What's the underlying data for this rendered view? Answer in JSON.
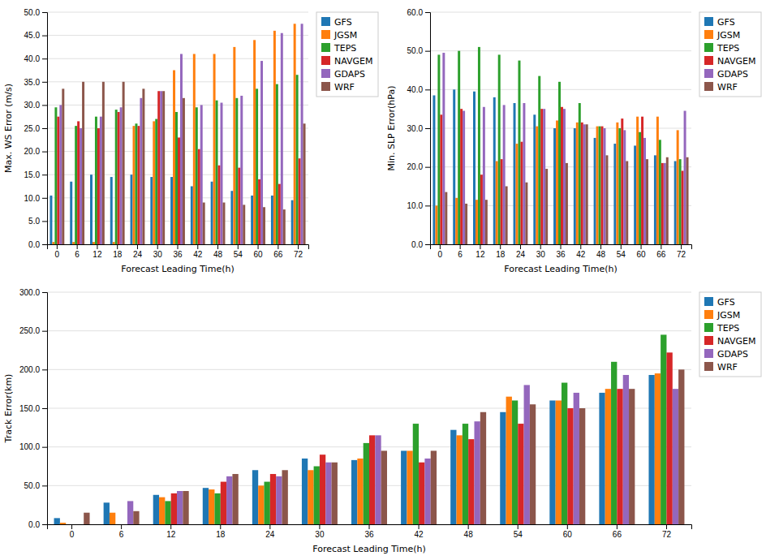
{
  "chart_data": [
    {
      "type": "bar",
      "categories": [
        "0",
        "6",
        "12",
        "18",
        "24",
        "30",
        "36",
        "42",
        "48",
        "54",
        "60",
        "66",
        "72"
      ],
      "series": [
        {
          "name": "GFS",
          "values": [
            10.5,
            13.5,
            15.0,
            14.5,
            15.0,
            14.5,
            14.5,
            12.5,
            13.5,
            11.5,
            10.5,
            10.5,
            9.5
          ]
        },
        {
          "name": "JGSM",
          "values": [
            0.5,
            0.5,
            0.5,
            0.5,
            25.5,
            26.5,
            37.5,
            41.0,
            41.0,
            42.5,
            44.0,
            46.0,
            47.5
          ]
        },
        {
          "name": "TEPS",
          "values": [
            29.5,
            25.5,
            27.5,
            29.0,
            26.0,
            27.0,
            28.5,
            29.5,
            31.0,
            31.5,
            33.5,
            34.5,
            36.5
          ]
        },
        {
          "name": "NAVGEM",
          "values": [
            27.5,
            26.5,
            25.0,
            28.5,
            25.5,
            33.0,
            23.0,
            20.5,
            17.0,
            16.5,
            14.0,
            13.0,
            18.5
          ]
        },
        {
          "name": "GDAPS",
          "values": [
            30.0,
            25.0,
            27.5,
            29.5,
            31.5,
            33.0,
            41.0,
            30.0,
            30.5,
            32.0,
            39.5,
            45.5,
            47.5
          ]
        },
        {
          "name": "WRF",
          "values": [
            33.5,
            35.0,
            35.0,
            35.0,
            33.5,
            33.0,
            31.5,
            9.0,
            9.0,
            8.5,
            8.0,
            7.5,
            26.0
          ]
        }
      ],
      "ylim": [
        0,
        50.0
      ],
      "yticks": [
        {
          "value": 0,
          "label": "0.0"
        },
        {
          "value": 5,
          "label": "5.0"
        },
        {
          "value": 10,
          "label": "10.0"
        },
        {
          "value": 15,
          "label": "15.0"
        },
        {
          "value": 20,
          "label": "20.0"
        },
        {
          "value": 25,
          "label": "25.0"
        },
        {
          "value": 30,
          "label": "30.0"
        },
        {
          "value": 35,
          "label": "35.0"
        },
        {
          "value": 40,
          "label": "40.0"
        },
        {
          "value": 45,
          "label": "45.0"
        },
        {
          "value": 50,
          "label": "50.0"
        }
      ],
      "xlabel": "Forecast Leading Time(h)",
      "ylabel": "Max. WS Error (m/s)",
      "grid": true,
      "legend": "right"
    },
    {
      "type": "bar",
      "categories": [
        "0",
        "6",
        "12",
        "18",
        "24",
        "30",
        "36",
        "42",
        "48",
        "54",
        "60",
        "66",
        "72"
      ],
      "series": [
        {
          "name": "GFS",
          "values": [
            38.5,
            40.0,
            39.5,
            38.0,
            36.5,
            33.5,
            30.0,
            30.0,
            27.5,
            26.0,
            25.5,
            23.0,
            21.5
          ]
        },
        {
          "name": "JGSM",
          "values": [
            10.0,
            12.0,
            11.5,
            21.5,
            26.0,
            30.5,
            32.0,
            31.5,
            30.5,
            31.5,
            33.0,
            33.0,
            29.5
          ]
        },
        {
          "name": "TEPS",
          "values": [
            49.0,
            50.0,
            51.0,
            49.0,
            47.5,
            43.5,
            42.0,
            36.5,
            30.5,
            30.0,
            29.0,
            27.0,
            22.0
          ]
        },
        {
          "name": "NAVGEM",
          "values": [
            33.5,
            35.0,
            18.0,
            22.0,
            26.5,
            35.0,
            35.5,
            31.5,
            30.5,
            32.5,
            33.0,
            21.0,
            19.0
          ]
        },
        {
          "name": "GDAPS",
          "values": [
            49.5,
            34.5,
            35.5,
            36.0,
            36.5,
            35.0,
            35.0,
            31.0,
            30.0,
            29.5,
            27.5,
            21.0,
            34.5
          ]
        },
        {
          "name": "WRF",
          "values": [
            13.5,
            10.5,
            11.5,
            15.0,
            16.0,
            19.5,
            21.0,
            31.0,
            23.0,
            21.5,
            22.0,
            22.5,
            22.5
          ]
        }
      ],
      "ylim": [
        0,
        60.0
      ],
      "yticks": [
        {
          "value": 0,
          "label": "0.0"
        },
        {
          "value": 10,
          "label": "10.0"
        },
        {
          "value": 20,
          "label": "20.0"
        },
        {
          "value": 30,
          "label": "30.0"
        },
        {
          "value": 40,
          "label": "40.0"
        },
        {
          "value": 50,
          "label": "50.0"
        },
        {
          "value": 60,
          "label": "60.0"
        }
      ],
      "xlabel": "Forecast Leading Time(h)",
      "ylabel": "Min. SLP Error(hPa)",
      "grid": true,
      "legend": "right"
    },
    {
      "type": "bar",
      "categories": [
        "0",
        "6",
        "12",
        "18",
        "24",
        "30",
        "36",
        "42",
        "48",
        "54",
        "60",
        "66",
        "72"
      ],
      "series": [
        {
          "name": "GFS",
          "values": [
            8.0,
            28.0,
            38.0,
            47.0,
            70.0,
            85.0,
            83.0,
            95.0,
            122.0,
            145.0,
            160.0,
            170.0,
            193.0
          ]
        },
        {
          "name": "JGSM",
          "values": [
            2.0,
            15.0,
            35.0,
            45.0,
            50.0,
            70.0,
            85.0,
            95.0,
            115.0,
            165.0,
            160.0,
            175.0,
            195.0
          ]
        },
        {
          "name": "TEPS",
          "values": [
            0.0,
            0.0,
            30.0,
            40.0,
            55.0,
            75.0,
            105.0,
            130.0,
            130.0,
            160.0,
            183.0,
            210.0,
            245.0
          ]
        },
        {
          "name": "NAVGEM",
          "values": [
            0.0,
            0.0,
            40.0,
            55.0,
            65.0,
            90.0,
            115.0,
            80.0,
            110.0,
            130.0,
            150.0,
            175.0,
            222.0
          ]
        },
        {
          "name": "GDAPS",
          "values": [
            0.0,
            30.0,
            43.0,
            62.0,
            62.0,
            80.0,
            115.0,
            85.0,
            133.0,
            180.0,
            170.0,
            193.0,
            175.0
          ]
        },
        {
          "name": "WRF",
          "values": [
            15.0,
            17.0,
            43.0,
            65.0,
            70.0,
            80.0,
            95.0,
            95.0,
            145.0,
            155.0,
            150.0,
            175.0,
            200.0
          ]
        }
      ],
      "ylim": [
        0,
        300.0
      ],
      "yticks": [
        {
          "value": 0,
          "label": "0.0"
        },
        {
          "value": 50,
          "label": "50.0"
        },
        {
          "value": 100,
          "label": "100.0"
        },
        {
          "value": 150,
          "label": "150.0"
        },
        {
          "value": 200,
          "label": "200.0"
        },
        {
          "value": 250,
          "label": "250.0"
        },
        {
          "value": 300,
          "label": "300.0"
        }
      ],
      "xlabel": "Forecast Leading Time(h)",
      "ylabel": "Track Error(km)",
      "grid": true,
      "legend": "right"
    }
  ]
}
